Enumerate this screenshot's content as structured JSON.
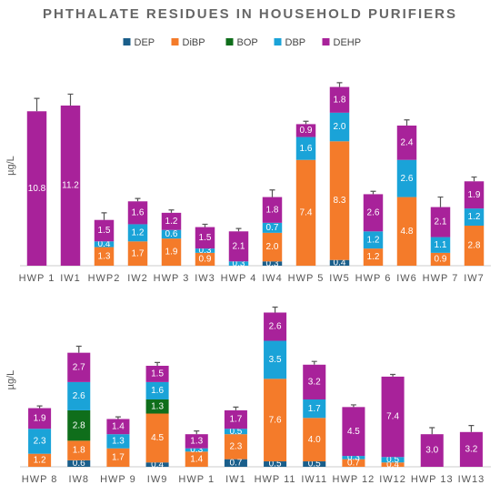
{
  "chart_data": [
    {
      "type": "stacked_bar",
      "title": "PHTHALATE RESIDUES IN HOUSEHOLD PURIFIERS",
      "y_label": "µg/L",
      "categories": [
        "HWP 1",
        "IW1",
        "HWP2",
        "IW2",
        "HWP 3",
        "IW3",
        "HWP 4",
        "IW4",
        "HWP 5",
        "IW5",
        "HWP 6",
        "IW6",
        "HWP 7",
        "IW7"
      ],
      "ylim": [
        0,
        14
      ],
      "series": [
        {
          "name": "DEP",
          "color": "#1a5e8a",
          "values": [
            null,
            null,
            null,
            null,
            null,
            null,
            null,
            0.3,
            null,
            0.4,
            null,
            null,
            null,
            null
          ],
          "value_labels": [
            null,
            null,
            null,
            null,
            null,
            null,
            null,
            "0.3",
            null,
            "0.4",
            null,
            null,
            null,
            null
          ]
        },
        {
          "name": "DiBP",
          "color": "#f47b2a",
          "values": [
            null,
            null,
            1.3,
            1.7,
            1.9,
            0.9,
            null,
            2.0,
            7.4,
            8.3,
            1.2,
            4.8,
            0.9,
            2.8
          ],
          "value_labels": [
            null,
            null,
            "1.3",
            "1.7",
            "1.9",
            "0.9",
            null,
            "2.0",
            "7.4",
            "8.3",
            "1.2",
            "4.8",
            "0.9",
            "2.8"
          ]
        },
        {
          "name": "BOP",
          "color": "#0f6e1b",
          "values": [
            null,
            null,
            null,
            null,
            null,
            null,
            null,
            null,
            null,
            null,
            null,
            null,
            null,
            null
          ],
          "value_labels": [
            null,
            null,
            null,
            null,
            null,
            null,
            null,
            null,
            null,
            null,
            null,
            null,
            null,
            null
          ]
        },
        {
          "name": "DBP",
          "color": "#1aa3d8",
          "values": [
            null,
            null,
            0.4,
            1.2,
            0.6,
            0.3,
            0.3,
            0.7,
            1.6,
            2.0,
            1.2,
            2.6,
            1.1,
            1.2
          ],
          "value_labels": [
            null,
            null,
            "0.4",
            "1.2",
            "0.6",
            "0.3",
            "0.3",
            "0.7",
            "1.6",
            "2.0",
            "1.2",
            "2.6",
            "1.1",
            "1.2"
          ]
        },
        {
          "name": "DEHP",
          "color": "#a8229a",
          "values": [
            10.8,
            11.2,
            1.5,
            1.6,
            1.2,
            1.5,
            2.1,
            1.8,
            0.9,
            1.8,
            2.6,
            2.4,
            2.1,
            1.9
          ],
          "value_labels": [
            "10.8",
            "11.2",
            "1.5",
            "1.6",
            "1.2",
            "1.5",
            "2.1",
            "1.8",
            "0.9",
            "1.8",
            "2.6",
            "2.4",
            "2.1",
            "1.9"
          ]
        }
      ],
      "errors": [
        0.9,
        0.8,
        0.5,
        0.2,
        0.2,
        0.2,
        0.2,
        0.5,
        0.2,
        0.3,
        0.2,
        0.4,
        0.7,
        0.3
      ]
    },
    {
      "type": "stacked_bar",
      "y_label": "µg/L",
      "categories": [
        "HWP 8",
        "IW8",
        "HWP 9",
        "IW9",
        "HWP 1",
        "IW1",
        "HWP 11",
        "IW11",
        "HWP 12",
        "IW12",
        "HWP 13",
        "IW13"
      ],
      "ylim": [
        0,
        16
      ],
      "series": [
        {
          "name": "DEP",
          "color": "#1a5e8a",
          "values": [
            null,
            0.6,
            null,
            0.4,
            null,
            0.7,
            0.5,
            0.5,
            null,
            null,
            null,
            null
          ],
          "value_labels": [
            null,
            "0.6",
            null,
            "0.4",
            null,
            "0.7",
            "0.5",
            "0.5",
            null,
            null,
            null,
            null
          ]
        },
        {
          "name": "DiBP",
          "color": "#f47b2a",
          "values": [
            1.2,
            1.8,
            1.7,
            4.5,
            1.4,
            2.3,
            7.6,
            4.0,
            0.7,
            0.4,
            null,
            null
          ],
          "value_labels": [
            "1.2",
            "1.8",
            "1.7",
            "4.5",
            "1.4",
            "2.3",
            "7.6",
            "4.0",
            "0.7",
            "0.4",
            null,
            null
          ]
        },
        {
          "name": "BOP",
          "color": "#0f6e1b",
          "values": [
            null,
            2.8,
            null,
            1.3,
            null,
            null,
            null,
            null,
            null,
            null,
            null,
            null
          ],
          "value_labels": [
            null,
            "2.8",
            null,
            "1.3",
            null,
            null,
            null,
            null,
            null,
            null,
            null,
            null
          ]
        },
        {
          "name": "DBP",
          "color": "#1aa3d8",
          "values": [
            2.3,
            2.6,
            1.3,
            1.6,
            0.3,
            0.5,
            3.5,
            1.7,
            0.3,
            0.5,
            null,
            null
          ],
          "value_labels": [
            "2.3",
            "2.6",
            "1.3",
            "1.6",
            "0.3",
            "0.5",
            "3.5",
            "1.7",
            "0.3",
            "0.5",
            null,
            null
          ]
        },
        {
          "name": "DEHP",
          "color": "#a8229a",
          "values": [
            1.9,
            2.7,
            1.4,
            1.5,
            1.3,
            1.7,
            2.6,
            3.2,
            4.5,
            7.4,
            3.0,
            3.2
          ],
          "value_labels": [
            "1.9",
            "2.7",
            "1.4",
            "1.5",
            "1.3",
            "1.7",
            "2.6",
            "3.2",
            "4.5",
            "7.4",
            "3.0",
            "3.2"
          ]
        }
      ],
      "errors": [
        0.2,
        0.6,
        0.2,
        0.3,
        0.3,
        0.3,
        0.5,
        0.3,
        0.2,
        0.2,
        0.6,
        0.6
      ]
    }
  ]
}
